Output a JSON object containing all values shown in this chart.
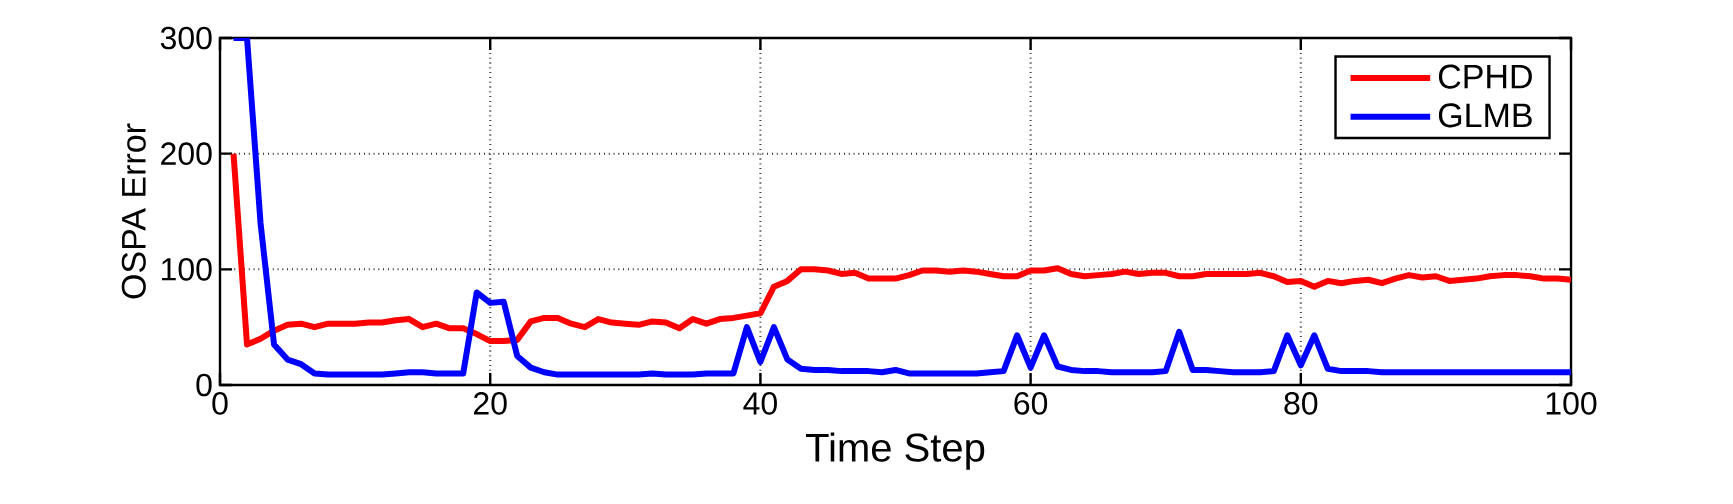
{
  "chart_data": {
    "type": "line",
    "xlabel": "Time Step",
    "ylabel": "OSPA Error",
    "x": [
      1,
      2,
      3,
      4,
      5,
      6,
      7,
      8,
      9,
      10,
      11,
      12,
      13,
      14,
      15,
      16,
      17,
      18,
      19,
      20,
      21,
      22,
      23,
      24,
      25,
      26,
      27,
      28,
      29,
      30,
      31,
      32,
      33,
      34,
      35,
      36,
      37,
      38,
      39,
      40,
      41,
      42,
      43,
      44,
      45,
      46,
      47,
      48,
      49,
      50,
      51,
      52,
      53,
      54,
      55,
      56,
      57,
      58,
      59,
      60,
      61,
      62,
      63,
      64,
      65,
      66,
      67,
      68,
      69,
      70,
      71,
      72,
      73,
      74,
      75,
      76,
      77,
      78,
      79,
      80,
      81,
      82,
      83,
      84,
      85,
      86,
      87,
      88,
      89,
      90,
      91,
      92,
      93,
      94,
      95,
      96,
      97,
      98,
      99,
      100
    ],
    "series": [
      {
        "name": "CPHD",
        "color": "#ff0000",
        "values": [
          200,
          35,
          40,
          47,
          52,
          53,
          50,
          53,
          53,
          53,
          54,
          54,
          56,
          57,
          50,
          53,
          49,
          49,
          44,
          38,
          38,
          39,
          55,
          58,
          58,
          53,
          50,
          57,
          54,
          53,
          52,
          55,
          54,
          49,
          57,
          53,
          57,
          58,
          60,
          62,
          85,
          90,
          100,
          100,
          99,
          96,
          97,
          92,
          92,
          92,
          95,
          99,
          99,
          98,
          99,
          98,
          96,
          94,
          94,
          99,
          99,
          101,
          96,
          94,
          95,
          96,
          98,
          96,
          97,
          97,
          94,
          94,
          96,
          96,
          96,
          96,
          97,
          94,
          89,
          90,
          85,
          90,
          88,
          90,
          91,
          88,
          92,
          95,
          93,
          94,
          90,
          91,
          92,
          94,
          95,
          95,
          94,
          92,
          92,
          91
        ]
      },
      {
        "name": "GLMB",
        "color": "#0000ff",
        "values": [
          300,
          300,
          140,
          35,
          22,
          18,
          10,
          9,
          9,
          9,
          9,
          9,
          10,
          11,
          11,
          10,
          10,
          10,
          80,
          71,
          72,
          25,
          15,
          11,
          9,
          9,
          9,
          9,
          9,
          9,
          9,
          10,
          9,
          9,
          9,
          10,
          10,
          10,
          50,
          20,
          50,
          22,
          14,
          13,
          13,
          12,
          12,
          12,
          11,
          13,
          10,
          10,
          10,
          10,
          10,
          10,
          11,
          12,
          43,
          15,
          43,
          16,
          13,
          12,
          12,
          11,
          11,
          11,
          11,
          12,
          46,
          13,
          13,
          12,
          11,
          11,
          11,
          12,
          43,
          17,
          43,
          14,
          12,
          12,
          12,
          11,
          11,
          11,
          11,
          11,
          11,
          11,
          11,
          11,
          11,
          11,
          11,
          11,
          11,
          11
        ]
      }
    ],
    "xlim": [
      0,
      100
    ],
    "xticks": [
      0,
      20,
      40,
      60,
      80,
      100
    ],
    "ylim": [
      0,
      300
    ],
    "yticks": [
      0,
      100,
      200,
      300
    ],
    "grid": true,
    "legend": "top right",
    "line_style": "solid",
    "marker": "none"
  }
}
